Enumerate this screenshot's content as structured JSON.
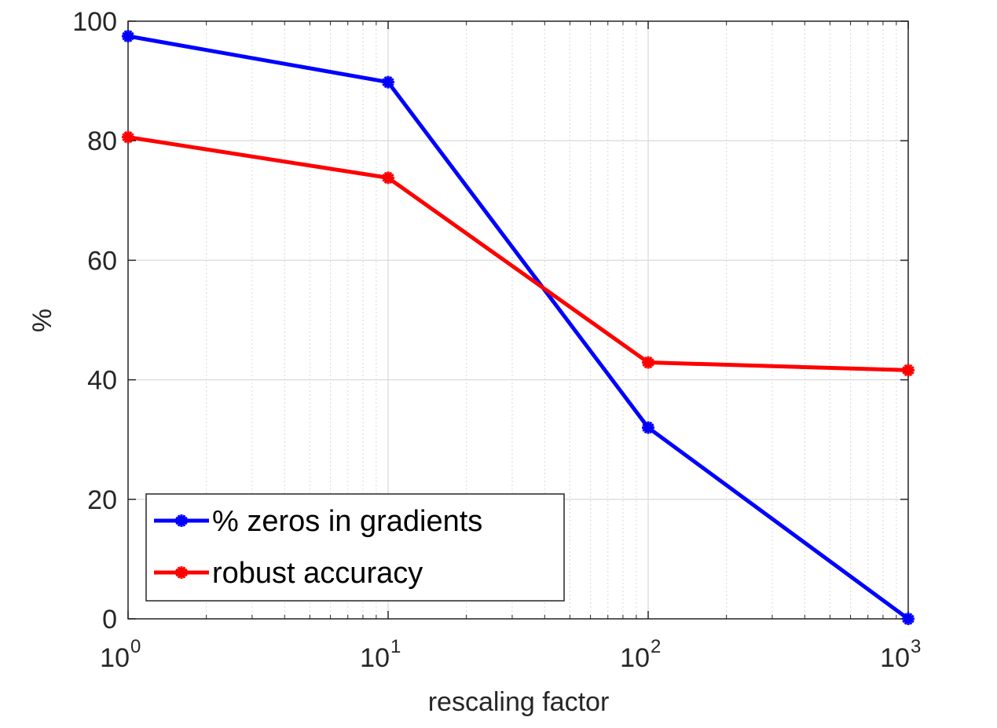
{
  "chart_data": {
    "type": "line",
    "xlabel": "rescaling factor",
    "ylabel": "%",
    "x_scale": "log",
    "xlim": [
      1,
      1000
    ],
    "ylim": [
      0,
      100
    ],
    "grid": true,
    "minor_grid_x": true,
    "x_ticks": [
      {
        "value": 1,
        "base": "10",
        "exp": "0"
      },
      {
        "value": 10,
        "base": "10",
        "exp": "1"
      },
      {
        "value": 100,
        "base": "10",
        "exp": "2"
      },
      {
        "value": 1000,
        "base": "10",
        "exp": "3"
      }
    ],
    "y_ticks": [
      "0",
      "20",
      "40",
      "60",
      "80",
      "100"
    ],
    "legend_position": "bottom-left",
    "x": [
      1,
      10,
      100,
      1000
    ],
    "series": [
      {
        "name": "% zeros in gradients",
        "color": "#0000FF",
        "marker": "asterisk",
        "values": [
          97.5,
          89.8,
          32.0,
          0.0
        ]
      },
      {
        "name": "robust accuracy",
        "color": "#FF0000",
        "marker": "asterisk",
        "values": [
          80.6,
          73.8,
          42.9,
          41.6
        ]
      }
    ]
  }
}
